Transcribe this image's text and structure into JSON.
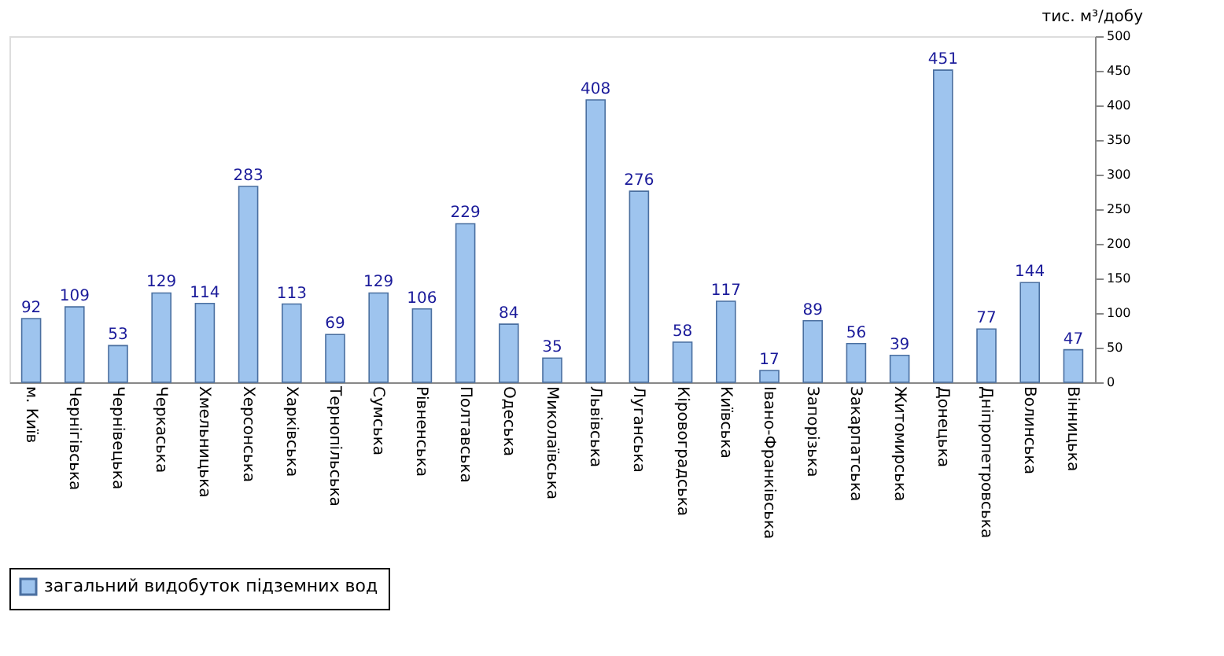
{
  "chart_data": {
    "type": "bar",
    "ylabel": "тис. м³/добу",
    "categories": [
      "м. Київ",
      "Чернігівська",
      "Чернівецька",
      "Черкаська",
      "Хмельницька",
      "Херсонська",
      "Харківська",
      "Тернопільська",
      "Сумська",
      "Рівненська",
      "Полтавська",
      "Одеська",
      "Миколаївська",
      "Львівська",
      "Луганська",
      "Кіровоградська",
      "Київська",
      "Івано-Франківська",
      "Запорізька",
      "Закарпатська",
      "Житомирська",
      "Донецька",
      "Дніпропетровська",
      "Волинська",
      "Вінницька"
    ],
    "series": [
      {
        "name": "загальний видобуток підземних вод",
        "color": "#9ec4ee",
        "values": [
          92,
          109,
          53,
          129,
          114,
          283,
          113,
          69,
          129,
          106,
          229,
          84,
          35,
          408,
          276,
          58,
          117,
          17,
          89,
          56,
          39,
          451,
          77,
          144,
          47
        ]
      }
    ],
    "ylim": [
      0,
      500
    ],
    "yticks": [
      0,
      50,
      100,
      150,
      200,
      250,
      300,
      350,
      400,
      450,
      500
    ],
    "data_labels": true,
    "legend": "bottom",
    "grid": false
  }
}
